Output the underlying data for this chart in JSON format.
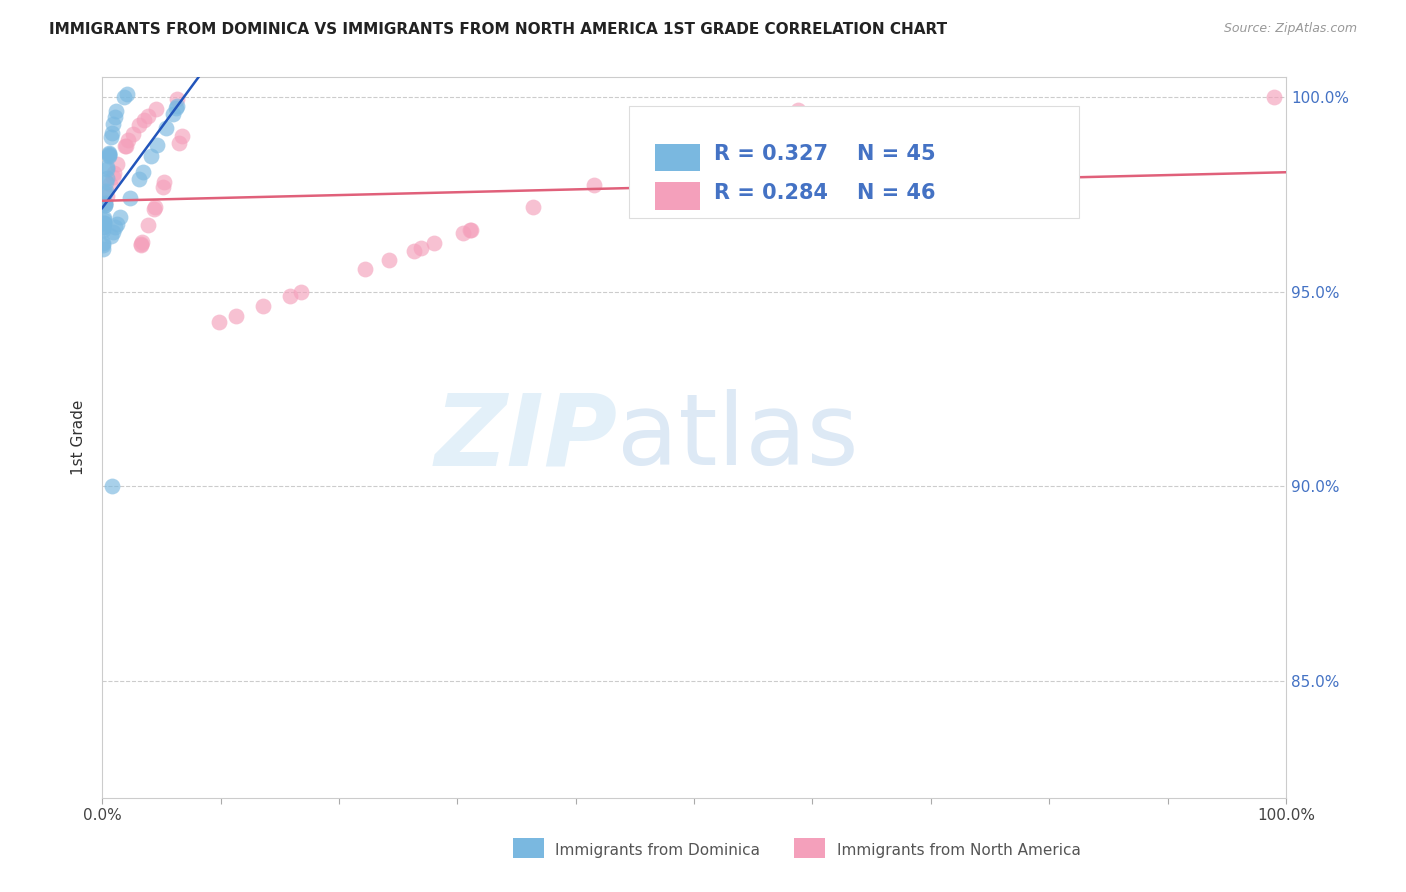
{
  "title": "IMMIGRANTS FROM DOMINICA VS IMMIGRANTS FROM NORTH AMERICA 1ST GRADE CORRELATION CHART",
  "source": "Source: ZipAtlas.com",
  "ylabel": "1st Grade",
  "xlim": [
    0.0,
    1.0
  ],
  "ylim": [
    0.82,
    1.005
  ],
  "y_ticks": [
    0.85,
    0.9,
    0.95,
    1.0
  ],
  "y_tick_labels": [
    "85.0%",
    "90.0%",
    "95.0%",
    "100.0%"
  ],
  "r_dominica": 0.327,
  "n_dominica": 45,
  "r_north_america": 0.284,
  "n_north_america": 46,
  "color_dominica": "#7ab8e0",
  "color_north_america": "#f4a0bb",
  "trendline_dominica": "#2255bb",
  "trendline_north_america": "#e0607a",
  "background_color": "#ffffff"
}
